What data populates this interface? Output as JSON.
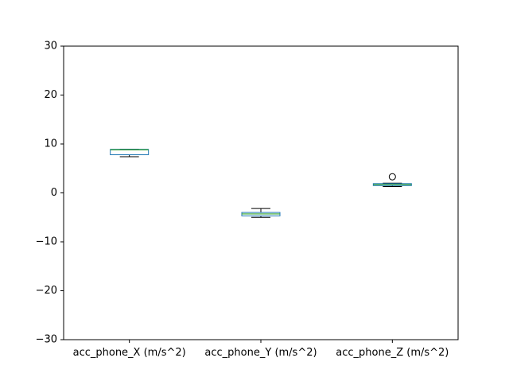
{
  "chart_data": {
    "type": "box",
    "title": "",
    "xlabel": "",
    "ylabel": "",
    "ylim": [
      -30,
      30
    ],
    "yticks": [
      -30,
      -20,
      -10,
      0,
      10,
      20,
      30
    ],
    "ytick_labels": [
      "−30",
      "−20",
      "−10",
      "0",
      "10",
      "20",
      "30"
    ],
    "grid": false,
    "legend": "none",
    "categories": [
      "acc_phone_X (m/s^2)",
      "acc_phone_Y (m/s^2)",
      "acc_phone_Z (m/s^2)"
    ],
    "boxes": [
      {
        "whisker_low": 7.4,
        "q1": 7.8,
        "median": 8.8,
        "q3": 8.9,
        "whisker_high": 8.9,
        "outliers": []
      },
      {
        "whisker_low": -5.0,
        "q1": -4.7,
        "median": -4.3,
        "q3": -4.0,
        "whisker_high": -3.2,
        "outliers": []
      },
      {
        "whisker_low": 1.3,
        "q1": 1.5,
        "median": 1.7,
        "q3": 1.9,
        "whisker_high": 2.0,
        "outliers": [
          3.3
        ]
      }
    ],
    "colors": {
      "box": "#1f77b4",
      "median": "#2ca02c",
      "whisker": "#000000",
      "cap": "#000000",
      "axis": "#000000"
    }
  }
}
